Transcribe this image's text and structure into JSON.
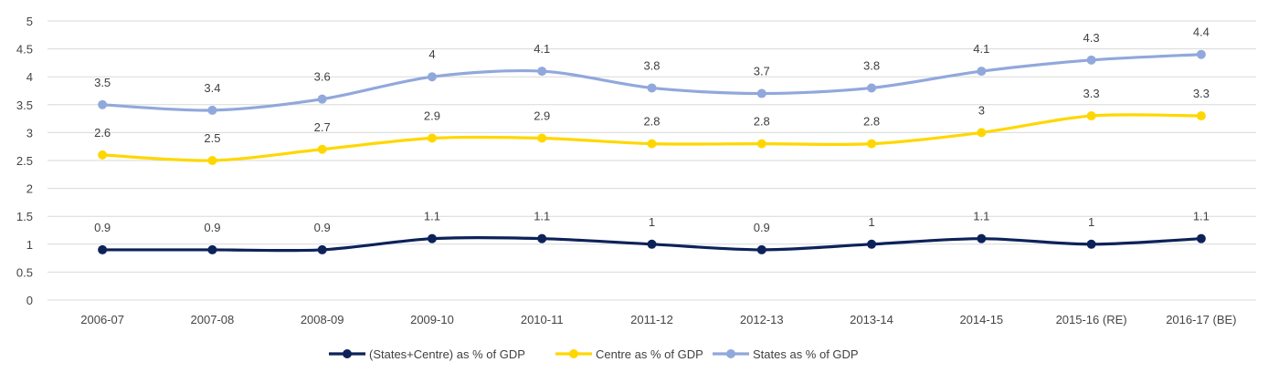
{
  "chart_data": {
    "type": "line",
    "title": "",
    "xlabel": "",
    "ylabel": "",
    "ylim": [
      0,
      5
    ],
    "yticks": [
      "0",
      "0.5",
      "1",
      "1.5",
      "2",
      "2.5",
      "3",
      "3.5",
      "4",
      "4.5",
      "5"
    ],
    "grid": true,
    "legend_position": "bottom",
    "categories": [
      "2006-07",
      "2007-08",
      "2008-09",
      "2009-10",
      "2010-11",
      "2011-12",
      "2012-13",
      "2013-14",
      "2014-15",
      "2015-16 (RE)",
      "2016-17 (BE)"
    ],
    "series": [
      {
        "name": "(States+Centre) as % of GDP",
        "color": "#0d2259",
        "values": [
          0.9,
          0.9,
          0.9,
          1.1,
          1.1,
          1.0,
          0.9,
          1.0,
          1.1,
          1.0,
          1.1
        ],
        "labels": [
          "0.9",
          "0.9",
          "0.9",
          "1.1",
          "1.1",
          "1",
          "0.9",
          "1",
          "1.1",
          "1",
          "1.1"
        ]
      },
      {
        "name": "Centre as % of GDP",
        "color": "#ffd700",
        "values": [
          2.6,
          2.5,
          2.7,
          2.9,
          2.9,
          2.8,
          2.8,
          2.8,
          3.0,
          3.3,
          3.3
        ],
        "labels": [
          "2.6",
          "2.5",
          "2.7",
          "2.9",
          "2.9",
          "2.8",
          "2.8",
          "2.8",
          "3",
          "3.3",
          "3.3"
        ]
      },
      {
        "name": "States as % of GDP",
        "color": "#91a8dc",
        "values": [
          3.5,
          3.4,
          3.6,
          4.0,
          4.1,
          3.8,
          3.7,
          3.8,
          4.1,
          4.3,
          4.4
        ],
        "labels": [
          "3.5",
          "3.4",
          "3.6",
          "4",
          "4.1",
          "3.8",
          "3.7",
          "3.8",
          "4.1",
          "4.3",
          "4.4"
        ]
      }
    ]
  }
}
